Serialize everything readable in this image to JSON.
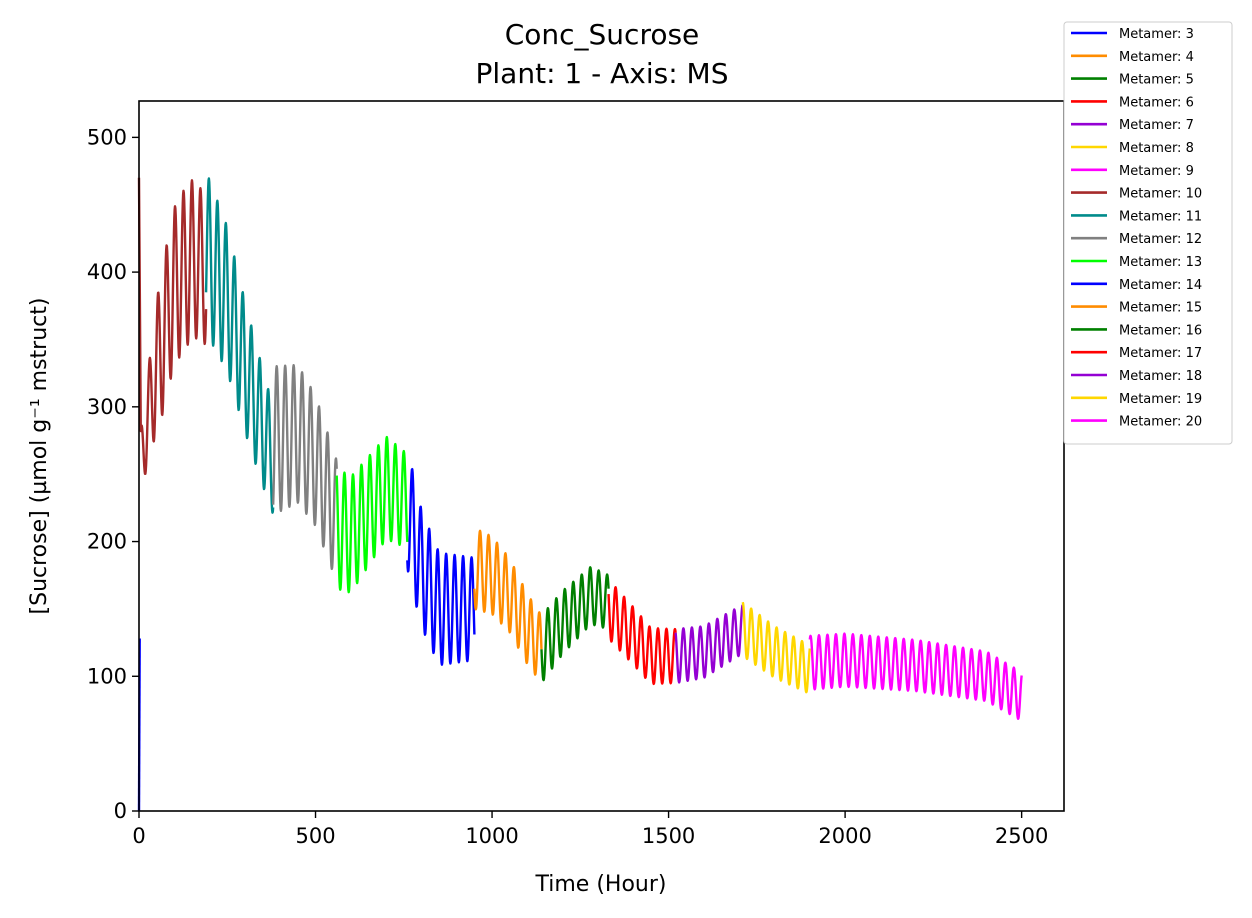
{
  "chart_data": {
    "type": "line",
    "title": "Conc_Sucrose",
    "subtitle": "Plant: 1 - Axis: MS",
    "xlabel": "Time (Hour)",
    "ylabel": "[Sucrose] (µmol g⁻¹ mstruct)",
    "xlim": [
      0,
      2620
    ],
    "ylim": [
      0,
      527
    ],
    "xticks": [
      0,
      500,
      1000,
      1500,
      2000,
      2500
    ],
    "yticks": [
      0,
      100,
      200,
      300,
      400,
      500
    ],
    "grid": false,
    "legend_position": "outside top-right",
    "oscillation_period_hours": 24,
    "series": [
      {
        "name": "Metamer: 3",
        "color": "#0000ff",
        "x": [
          0,
          2
        ],
        "y": [
          0,
          128
        ]
      },
      {
        "name": "Metamer: 4",
        "color": "#ff8c00",
        "x": [],
        "y": []
      },
      {
        "name": "Metamer: 5",
        "color": "#008000",
        "x": [],
        "y": []
      },
      {
        "name": "Metamer: 6",
        "color": "#ff0000",
        "x": [],
        "y": []
      },
      {
        "name": "Metamer: 7",
        "color": "#9400d3",
        "x": [],
        "y": []
      },
      {
        "name": "Metamer: 8",
        "color": "#ffd700",
        "x": [],
        "y": []
      },
      {
        "name": "Metamer: 9",
        "color": "#ff00ff",
        "x": [],
        "y": []
      },
      {
        "name": "Metamer: 10",
        "color": "#a52a2a",
        "x": [
          0,
          5,
          50,
          100,
          150,
          180,
          190
        ],
        "y": [
          470,
          260,
          330,
          390,
          410,
          405,
          400
        ]
      },
      {
        "name": "Metamer: 11",
        "color": "#008b8b",
        "x": [
          190,
          250,
          300,
          350,
          380
        ],
        "y": [
          415,
          380,
          330,
          285,
          260
        ]
      },
      {
        "name": "Metamer: 12",
        "color": "#808080",
        "x": [
          380,
          450,
          500,
          560
        ],
        "y": [
          275,
          280,
          260,
          215
        ]
      },
      {
        "name": "Metamer: 13",
        "color": "#00ff00",
        "x": [
          560,
          600,
          700,
          760
        ],
        "y": [
          210,
          205,
          240,
          230
        ]
      },
      {
        "name": "Metamer: 14",
        "color": "#0000ff",
        "x": [
          760,
          800,
          850,
          900,
          950
        ],
        "y": [
          225,
          180,
          150,
          150,
          150
        ]
      },
      {
        "name": "Metamer: 15",
        "color": "#ff8c00",
        "x": [
          950,
          1000,
          1050,
          1100,
          1140
        ],
        "y": [
          180,
          175,
          160,
          135,
          120
        ]
      },
      {
        "name": "Metamer: 16",
        "color": "#008000",
        "x": [
          1140,
          1200,
          1280,
          1330
        ],
        "y": [
          120,
          140,
          160,
          155
        ]
      },
      {
        "name": "Metamer: 17",
        "color": "#ff0000",
        "x": [
          1330,
          1400,
          1450,
          1520
        ],
        "y": [
          150,
          130,
          115,
          115
        ]
      },
      {
        "name": "Metamer: 18",
        "color": "#9400d3",
        "x": [
          1520,
          1600,
          1710
        ],
        "y": [
          115,
          118,
          135
        ]
      },
      {
        "name": "Metamer: 19",
        "color": "#ffd700",
        "x": [
          1710,
          1800,
          1900
        ],
        "y": [
          135,
          118,
          105
        ]
      },
      {
        "name": "Metamer: 20",
        "color": "#ff00ff",
        "x": [
          1900,
          2000,
          2200,
          2400,
          2500
        ],
        "y": [
          110,
          112,
          108,
          100,
          85
        ]
      }
    ],
    "amplitudes": {
      "Metamer: 10": [
        20,
        55,
        60,
        55
      ],
      "Metamer: 11": [
        60,
        40
      ],
      "Metamer: 12": [
        55,
        45
      ],
      "Metamer: 13": [
        45,
        35
      ],
      "Metamer: 14": [
        45,
        38
      ],
      "Metamer: 15": [
        30,
        25
      ],
      "Metamer: 16": [
        25,
        20
      ],
      "Metamer: 17": [
        22,
        20
      ],
      "Metamer: 18": [
        20,
        18
      ],
      "Metamer: 19": [
        20,
        18
      ],
      "Metamer: 20": [
        20,
        18
      ]
    }
  }
}
